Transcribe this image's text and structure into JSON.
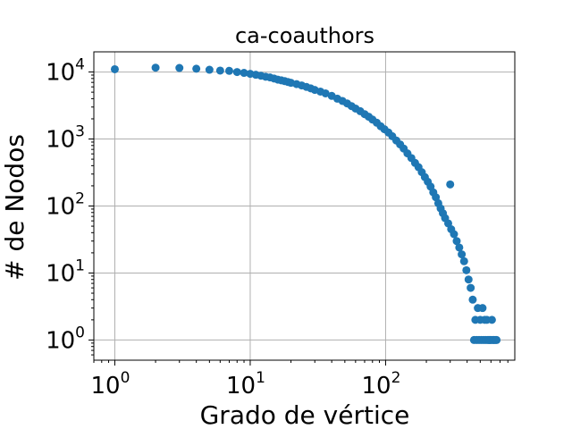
{
  "chart_data": {
    "type": "scatter",
    "title": "ca-coauthors",
    "xlabel": "Grado de vértice",
    "ylabel": "# de Nodos",
    "xscale": "log",
    "yscale": "log",
    "xlim": [
      0.7,
      900
    ],
    "ylim": [
      0.5,
      20000
    ],
    "grid": true,
    "marker_color": "#1f77b4",
    "x_ticks": [
      {
        "base": "10",
        "exp": "0",
        "value": 1
      },
      {
        "base": "10",
        "exp": "1",
        "value": 10
      },
      {
        "base": "10",
        "exp": "2",
        "value": 100
      }
    ],
    "y_ticks": [
      {
        "base": "10",
        "exp": "0",
        "value": 1
      },
      {
        "base": "10",
        "exp": "1",
        "value": 10
      },
      {
        "base": "10",
        "exp": "2",
        "value": 100
      },
      {
        "base": "10",
        "exp": "3",
        "value": 1000
      },
      {
        "base": "10",
        "exp": "4",
        "value": 10000
      }
    ],
    "series": [
      {
        "points": [
          [
            1,
            11000
          ],
          [
            2,
            11600
          ],
          [
            3,
            11500
          ],
          [
            4,
            11200
          ],
          [
            5,
            10800
          ],
          [
            6,
            10500
          ],
          [
            7,
            10400
          ],
          [
            8,
            10000
          ],
          [
            9,
            9700
          ],
          [
            10,
            9400
          ],
          [
            11,
            9100
          ],
          [
            12,
            8800
          ],
          [
            13,
            8500
          ],
          [
            14,
            8300
          ],
          [
            15,
            8000
          ],
          [
            16,
            7700
          ],
          [
            17,
            7500
          ],
          [
            18,
            7300
          ],
          [
            19,
            7100
          ],
          [
            20,
            6900
          ],
          [
            22,
            6600
          ],
          [
            24,
            6300
          ],
          [
            26,
            6000
          ],
          [
            28,
            5700
          ],
          [
            30,
            5400
          ],
          [
            33,
            5100
          ],
          [
            36,
            4800
          ],
          [
            40,
            4400
          ],
          [
            44,
            4000
          ],
          [
            48,
            3700
          ],
          [
            52,
            3400
          ],
          [
            56,
            3100
          ],
          [
            60,
            2850
          ],
          [
            65,
            2600
          ],
          [
            70,
            2350
          ],
          [
            75,
            2150
          ],
          [
            80,
            1950
          ],
          [
            86,
            1750
          ],
          [
            92,
            1550
          ],
          [
            98,
            1400
          ],
          [
            105,
            1250
          ],
          [
            112,
            1100
          ],
          [
            120,
            950
          ],
          [
            128,
            830
          ],
          [
            136,
            720
          ],
          [
            145,
            610
          ],
          [
            155,
            520
          ],
          [
            165,
            440
          ],
          [
            175,
            380
          ],
          [
            185,
            320
          ],
          [
            195,
            270
          ],
          [
            205,
            230
          ],
          [
            215,
            195
          ],
          [
            225,
            160
          ],
          [
            235,
            135
          ],
          [
            245,
            110
          ],
          [
            255,
            92
          ],
          [
            265,
            78
          ],
          [
            275,
            66
          ],
          [
            290,
            55
          ],
          [
            300,
            210
          ],
          [
            305,
            45
          ],
          [
            320,
            38
          ],
          [
            335,
            30
          ],
          [
            350,
            24
          ],
          [
            365,
            19
          ],
          [
            380,
            15
          ],
          [
            395,
            11
          ],
          [
            410,
            8
          ],
          [
            425,
            6
          ],
          [
            440,
            4
          ],
          [
            450,
            1
          ],
          [
            460,
            2
          ],
          [
            470,
            1
          ],
          [
            480,
            3
          ],
          [
            490,
            1
          ],
          [
            500,
            2
          ],
          [
            510,
            1
          ],
          [
            520,
            3
          ],
          [
            530,
            1
          ],
          [
            540,
            2
          ],
          [
            550,
            1
          ],
          [
            560,
            2
          ],
          [
            570,
            1
          ],
          [
            580,
            1
          ],
          [
            590,
            1
          ],
          [
            600,
            1
          ],
          [
            610,
            2
          ],
          [
            620,
            1
          ],
          [
            630,
            1
          ],
          [
            645,
            1
          ],
          [
            660,
            1
          ]
        ]
      }
    ]
  }
}
